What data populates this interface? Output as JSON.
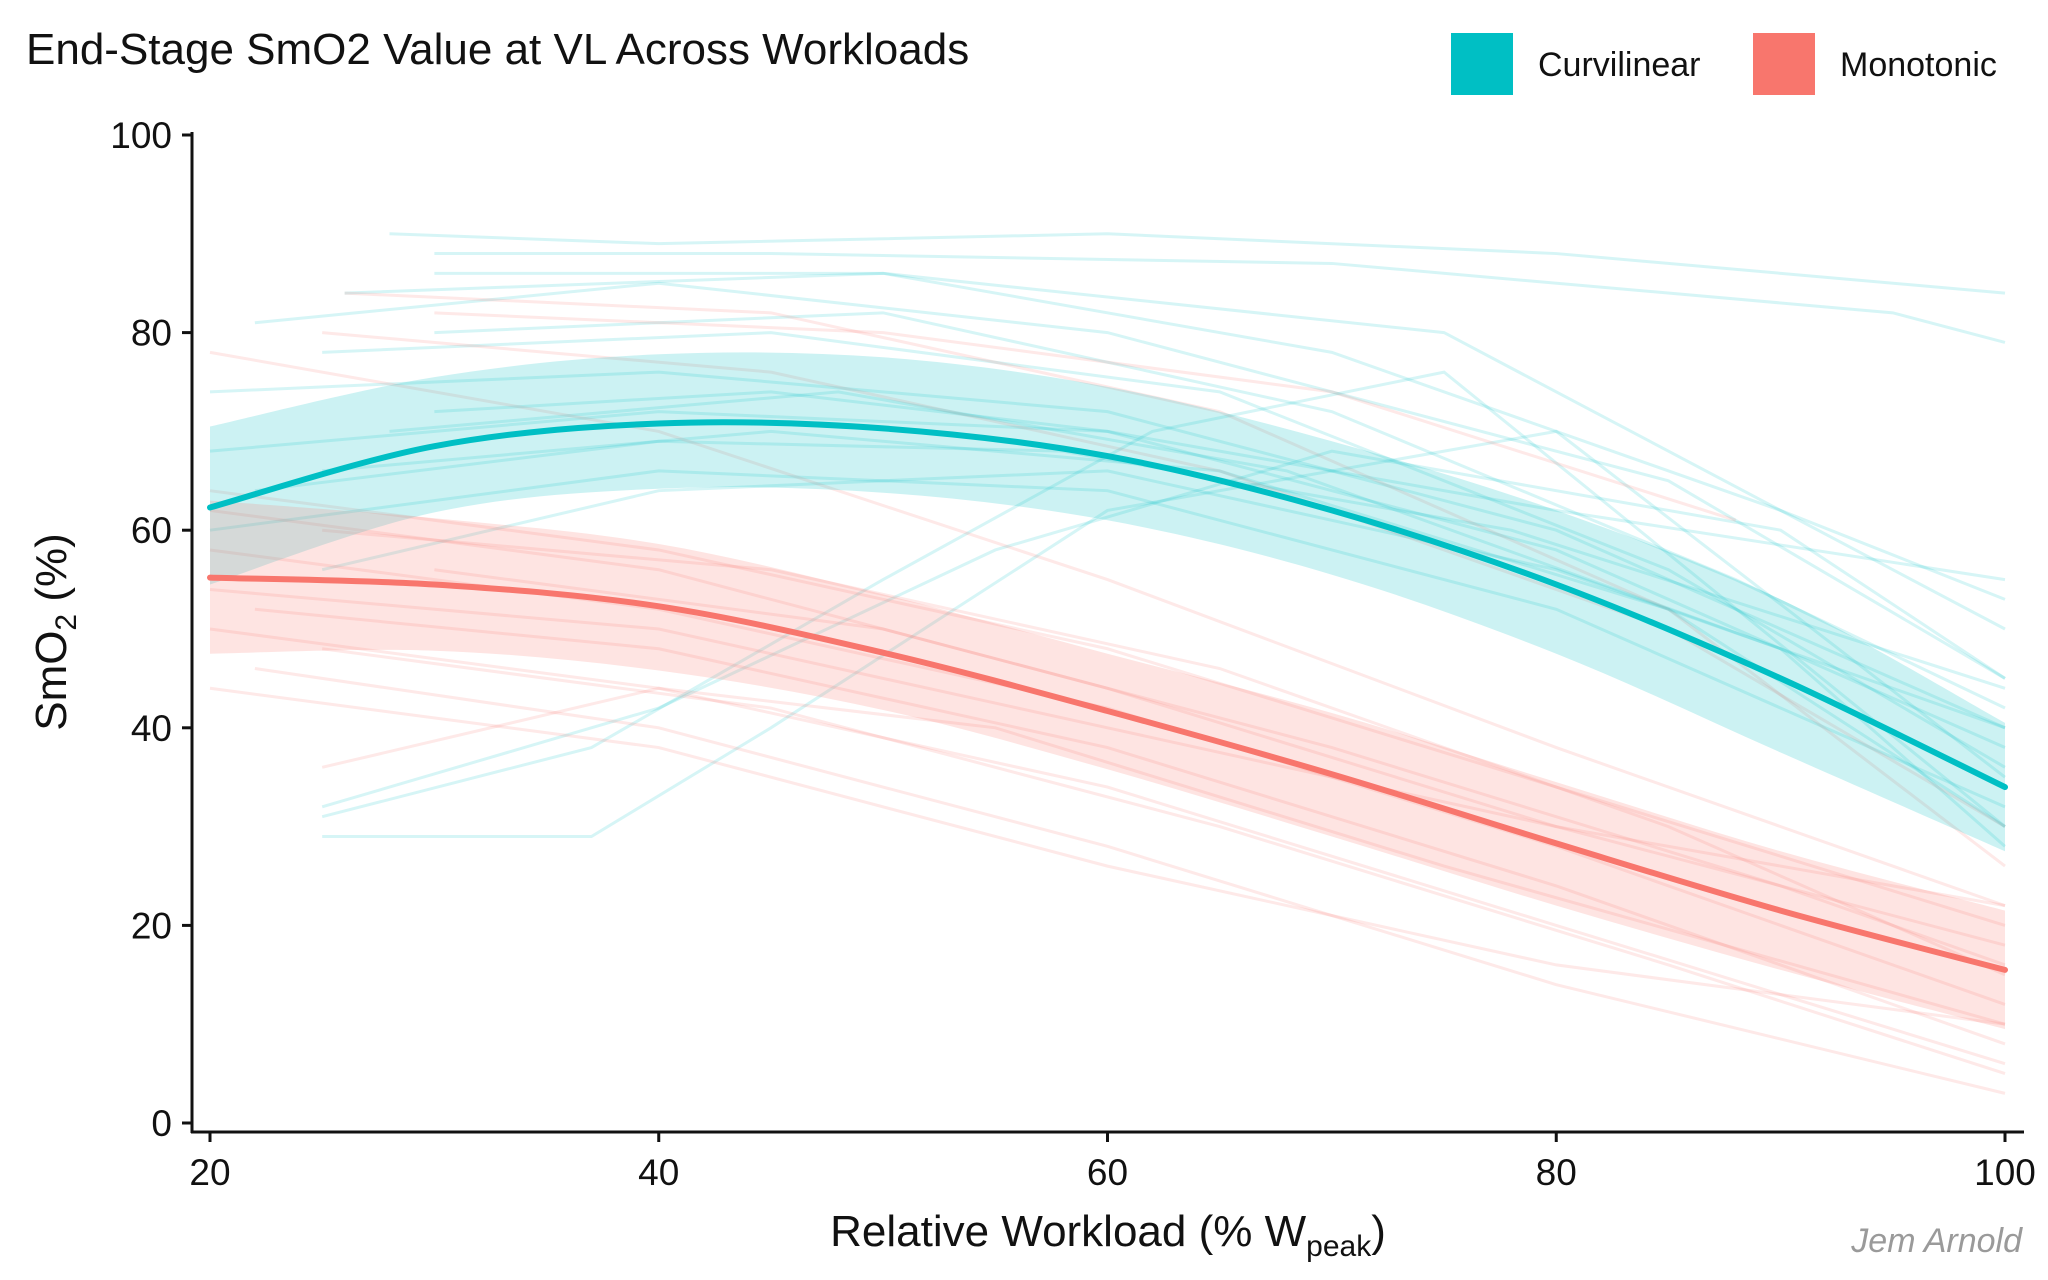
{
  "chart_data": {
    "type": "line",
    "title": "End-Stage SmO2 Value at VL Across Workloads",
    "credit": "Jem Arnold",
    "xlabel": {
      "main": "Relative Workload (% W",
      "sub": "peak",
      "end": ")"
    },
    "ylabel": {
      "main": "SmO",
      "sub": "2",
      "end": " (%)"
    },
    "xlim": [
      20,
      100
    ],
    "ylim": [
      0,
      100
    ],
    "xticks": [
      20,
      40,
      60,
      80,
      100
    ],
    "yticks": [
      0,
      20,
      40,
      60,
      80,
      100
    ],
    "grid": false,
    "legend_position": "top-right",
    "series": [
      {
        "name": "Curvilinear",
        "color": "#00BFC4",
        "fit": {
          "x": [
            20,
            30,
            40,
            50,
            60,
            70,
            80,
            90,
            100
          ],
          "y": [
            62.3,
            68.5,
            70.8,
            70.3,
            67.5,
            62,
            54.5,
            45,
            34
          ]
        },
        "band_upper": [
          70.5,
          75.5,
          77.8,
          77.5,
          74.5,
          69,
          62,
          53,
          40.5
        ],
        "band_lower": [
          54.5,
          61.8,
          64.2,
          63.8,
          61,
          55.5,
          47.5,
          37.5,
          27.5
        ],
        "individual": [
          {
            "x": [
              28,
              40,
              60,
              80,
              100
            ],
            "y": [
              90,
              89,
              90,
              88,
              84
            ]
          },
          {
            "x": [
              30,
              45,
              70,
              95,
              100
            ],
            "y": [
              88,
              88,
              87,
              82,
              79
            ]
          },
          {
            "x": [
              26,
              50,
              75,
              100
            ],
            "y": [
              84,
              86,
              80,
              50
            ]
          },
          {
            "x": [
              22,
              40,
              60,
              85,
              100
            ],
            "y": [
              81,
              85,
              80,
              65,
              45
            ]
          },
          {
            "x": [
              30,
              50,
              70,
              90,
              100
            ],
            "y": [
              86,
              86,
              78,
              62,
              53
            ]
          },
          {
            "x": [
              20,
              40,
              60,
              80,
              100
            ],
            "y": [
              74,
              76,
              72,
              60,
              40
            ]
          },
          {
            "x": [
              25,
              45,
              65,
              85,
              100
            ],
            "y": [
              78,
              80,
              74,
              56,
              36
            ]
          },
          {
            "x": [
              20,
              40,
              60,
              80,
              100
            ],
            "y": [
              68,
              72,
              70,
              58,
              38
            ]
          },
          {
            "x": [
              25,
              45,
              65,
              85,
              100
            ],
            "y": [
              66,
              70,
              66,
              52,
              30
            ]
          },
          {
            "x": [
              20,
              40,
              60,
              80,
              100
            ],
            "y": [
              60,
              66,
              64,
              52,
              32
            ]
          },
          {
            "x": [
              25,
              40,
              60,
              80,
              100
            ],
            "y": [
              56,
              64,
              66,
              56,
              40
            ]
          },
          {
            "x": [
              25,
              37,
              50,
              62,
              75,
              100
            ],
            "y": [
              31,
              38,
              55,
              70,
              76,
              30
            ]
          },
          {
            "x": [
              25,
              37,
              45,
              60,
              80,
              100
            ],
            "y": [
              29,
              29,
              40,
              62,
              70,
              35
            ]
          },
          {
            "x": [
              25,
              40,
              55,
              70,
              90,
              100
            ],
            "y": [
              32,
              42,
              58,
              68,
              60,
              45
            ]
          },
          {
            "x": [
              30,
              45,
              60,
              80,
              100
            ],
            "y": [
              72,
              74,
              70,
              62,
              55
            ]
          },
          {
            "x": [
              22,
              40,
              58,
              78,
              100
            ],
            "y": [
              64,
              69,
              68,
              60,
              44
            ]
          },
          {
            "x": [
              30,
              50,
              70,
              88,
              100
            ],
            "y": [
              80,
              82,
              72,
              55,
              42
            ]
          },
          {
            "x": [
              28,
              48,
              68,
              90,
              100
            ],
            "y": [
              70,
              74,
              66,
              48,
              28
            ]
          }
        ]
      },
      {
        "name": "Monotonic",
        "color": "#F8766D",
        "fit": {
          "x": [
            20,
            30,
            40,
            50,
            60,
            70,
            80,
            90,
            100
          ],
          "y": [
            55.2,
            54.5,
            52.3,
            47.6,
            41.7,
            35.3,
            28.3,
            21.5,
            15.5
          ]
        },
        "band_upper": [
          63,
          61.2,
          58.6,
          53.5,
          47.5,
          41.5,
          34.5,
          27.5,
          21.5
        ],
        "band_lower": [
          47.5,
          47.8,
          45.8,
          41.8,
          35.8,
          29,
          22,
          15.5,
          9.5
        ],
        "individual": [
          {
            "x": [
              20,
              40,
              60,
              80,
              100
            ],
            "y": [
              78,
              70,
              55,
              38,
              22
            ]
          },
          {
            "x": [
              25,
              45,
              65,
              85,
              100
            ],
            "y": [
              80,
              76,
              66,
              50,
              30
            ]
          },
          {
            "x": [
              20,
              40,
              60,
              80,
              100
            ],
            "y": [
              64,
              58,
              48,
              34,
              20
            ]
          },
          {
            "x": [
              25,
              45,
              65,
              85,
              100
            ],
            "y": [
              60,
              56,
              46,
              30,
              15
            ]
          },
          {
            "x": [
              20,
              40,
              60,
              80,
              100
            ],
            "y": [
              58,
              52,
              42,
              28,
              12
            ]
          },
          {
            "x": [
              22,
              40,
              60,
              80,
              100
            ],
            "y": [
              52,
              48,
              38,
              24,
              8
            ]
          },
          {
            "x": [
              20,
              40,
              60,
              80,
              100
            ],
            "y": [
              50,
              44,
              34,
              20,
              6
            ]
          },
          {
            "x": [
              25,
              45,
              65,
              85,
              100
            ],
            "y": [
              48,
              42,
              30,
              16,
              5
            ]
          },
          {
            "x": [
              22,
              40,
              60,
              80,
              100
            ],
            "y": [
              46,
              40,
              28,
              14,
              3
            ]
          },
          {
            "x": [
              20,
              40,
              60,
              80,
              100
            ],
            "y": [
              54,
              50,
              40,
              30,
              18
            ]
          },
          {
            "x": [
              30,
              50,
              70,
              90,
              100
            ],
            "y": [
              56,
              50,
              38,
              24,
              16
            ]
          },
          {
            "x": [
              20,
              40,
              60,
              80,
              100
            ],
            "y": [
              62,
              56,
              44,
              30,
              22
            ]
          },
          {
            "x": [
              25,
              40,
              55,
              75,
              100
            ],
            "y": [
              36,
              44,
              40,
              26,
              10
            ]
          },
          {
            "x": [
              26,
              45,
              65,
              85,
              100
            ],
            "y": [
              84,
              82,
              72,
              52,
              26
            ]
          },
          {
            "x": [
              30,
              50,
              70,
              88
            ],
            "y": [
              82,
              80,
              74,
              61
            ]
          },
          {
            "x": [
              20,
              40,
              60,
              80,
              100
            ],
            "y": [
              44,
              38,
              26,
              16,
              10
            ]
          }
        ]
      }
    ]
  }
}
